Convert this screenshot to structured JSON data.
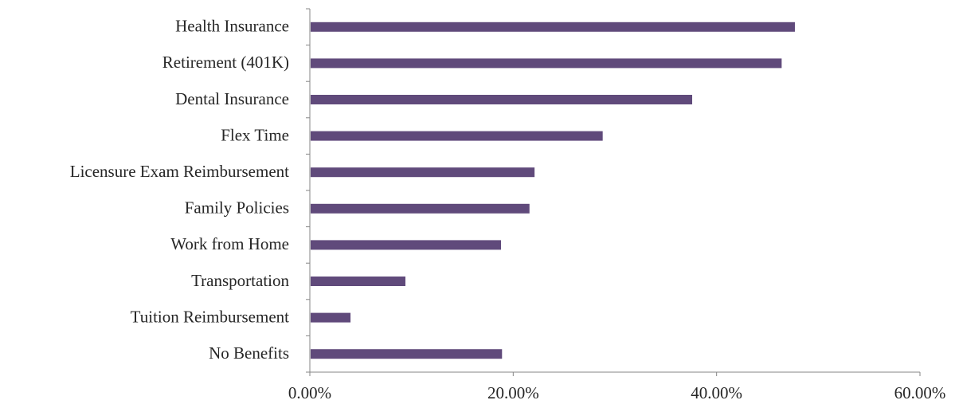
{
  "chart_data": {
    "type": "bar",
    "orientation": "horizontal",
    "categories": [
      "Health Insurance",
      "Retirement (401K)",
      "Dental Insurance",
      "Flex Time",
      "Licensure Exam Reimbursement",
      "Family Policies",
      "Work from Home",
      "Transportation",
      "Tuition Reimbursement",
      "No Benefits"
    ],
    "values": [
      0.477,
      0.464,
      0.376,
      0.288,
      0.221,
      0.216,
      0.188,
      0.094,
      0.04,
      0.189
    ],
    "xlim": [
      0,
      0.6
    ],
    "x_ticks": [
      0,
      0.2,
      0.4,
      0.6
    ],
    "x_tick_labels": [
      "0.00%",
      "20.00%",
      "40.00%",
      "60.00%"
    ],
    "title": "",
    "xlabel": "",
    "ylabel": "",
    "grid": false,
    "legend": "none",
    "bar_color": "#604a7b"
  }
}
